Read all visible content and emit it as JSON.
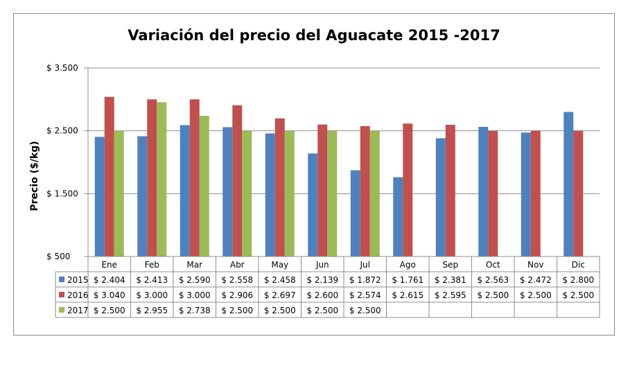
{
  "chart_data": {
    "type": "bar",
    "title": "Variación del precio del Aguacate 2015 -2017",
    "ylabel": "Precio ($/kg)",
    "xlabel": "",
    "ylim": [
      500,
      3500
    ],
    "yticks": [
      500,
      1500,
      2500,
      3500
    ],
    "ytick_labels": [
      "$ 500",
      "$ 1.500",
      "$ 2.500",
      "$ 3.500"
    ],
    "grid": true,
    "legend": "data-table-left",
    "categories": [
      "Ene",
      "Feb",
      "Mar",
      "Abr",
      "May",
      "Jun",
      "Jul",
      "Ago",
      "Sep",
      "Oct",
      "Nov",
      "Dic"
    ],
    "series": [
      {
        "name": "2015",
        "color": "#4F81BD",
        "values": [
          2404,
          2413,
          2590,
          2558,
          2458,
          2139,
          1872,
          1761,
          2381,
          2563,
          2472,
          2800
        ],
        "labels": [
          "$ 2.404",
          "$ 2.413",
          "$ 2.590",
          "$ 2.558",
          "$ 2.458",
          "$ 2.139",
          "$ 1.872",
          "$ 1.761",
          "$ 2.381",
          "$ 2.563",
          "$ 2.472",
          "$ 2.800"
        ]
      },
      {
        "name": "2016",
        "color": "#C0504D",
        "values": [
          3040,
          3000,
          3000,
          2906,
          2697,
          2600,
          2574,
          2615,
          2595,
          2500,
          2500,
          2500
        ],
        "labels": [
          "$ 3.040",
          "$ 3.000",
          "$ 3.000",
          "$ 2.906",
          "$ 2.697",
          "$ 2.600",
          "$ 2.574",
          "$ 2.615",
          "$ 2.595",
          "$ 2.500",
          "$ 2.500",
          "$ 2.500"
        ]
      },
      {
        "name": "2017",
        "color": "#9BBB59",
        "values": [
          2500,
          2955,
          2738,
          2500,
          2500,
          2500,
          2500,
          null,
          null,
          null,
          null,
          null
        ],
        "labels": [
          "$ 2.500",
          "$ 2.955",
          "$ 2.738",
          "$ 2.500",
          "$ 2.500",
          "$ 2.500",
          "$ 2.500",
          "",
          "",
          "",
          "",
          ""
        ]
      }
    ]
  }
}
